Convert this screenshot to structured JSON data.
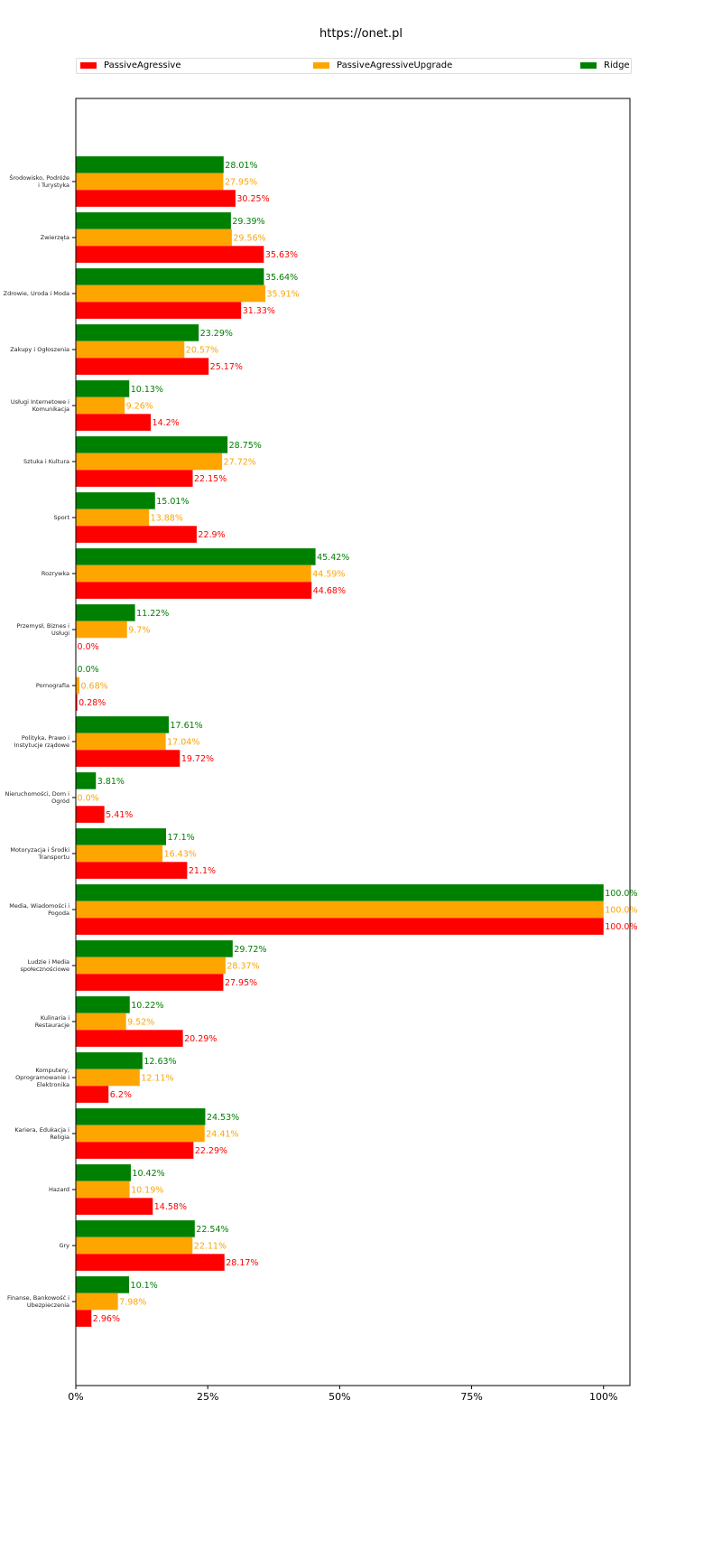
{
  "chart_data": {
    "type": "bar",
    "orientation": "horizontal",
    "title": "https://onet.pl",
    "xlabel": "",
    "ylabel": "",
    "xlim": [
      0,
      105
    ],
    "xticks": [
      "0%",
      "25%",
      "50%",
      "75%",
      "100%"
    ],
    "xtick_values": [
      0,
      25,
      50,
      75,
      100
    ],
    "legend_position": "top",
    "grid": false,
    "categories": [
      "Środowisko, Podróże i Turystyka",
      "Zwierzęta",
      "Zdrowie, Uroda i Moda",
      "Zakupy i Ogłoszenia",
      "Usługi Internetowe i Komunikacja",
      "Sztuka i Kultura",
      "Sport",
      "Rozrywka",
      "Przemysł, Biznes i Usługi",
      "Pornografia",
      "Polityka, Prawo i Instytucje rządowe",
      "Nieruchomości, Dom i Ogród",
      "Motoryzacja i Środki Transportu",
      "Media, Wiadomości i Pogoda",
      "Ludzie i Media społecznościowe",
      "Kulinaria i Restauracje",
      "Komputery, Oprogramowanie i Elektronika",
      "Kariera, Edukacja i Religia",
      "Hazard",
      "Gry",
      "Finanse, Bankowość i Ubezpieczenia"
    ],
    "series": [
      {
        "name": "PassiveAgressive",
        "color": "#ff0000",
        "values": [
          30.25,
          35.63,
          31.33,
          25.17,
          14.2,
          22.15,
          22.9,
          44.68,
          0.0,
          0.28,
          19.72,
          5.41,
          21.1,
          100.0,
          27.95,
          20.29,
          6.2,
          22.29,
          14.58,
          28.17,
          2.96
        ]
      },
      {
        "name": "PassiveAgressiveUpgrade",
        "color": "#ffa500",
        "values": [
          27.95,
          29.56,
          35.91,
          20.57,
          9.26,
          27.72,
          13.88,
          44.59,
          9.7,
          0.68,
          17.04,
          0.0,
          16.43,
          100.0,
          28.37,
          9.52,
          12.11,
          24.41,
          10.19,
          22.11,
          7.98
        ]
      },
      {
        "name": "Ridge",
        "color": "#008000",
        "values": [
          28.01,
          29.39,
          35.64,
          23.29,
          10.13,
          28.75,
          15.01,
          45.42,
          11.22,
          0.0,
          17.61,
          3.81,
          17.1,
          100.0,
          29.72,
          10.22,
          12.63,
          24.53,
          10.42,
          22.54,
          10.1
        ]
      }
    ]
  }
}
